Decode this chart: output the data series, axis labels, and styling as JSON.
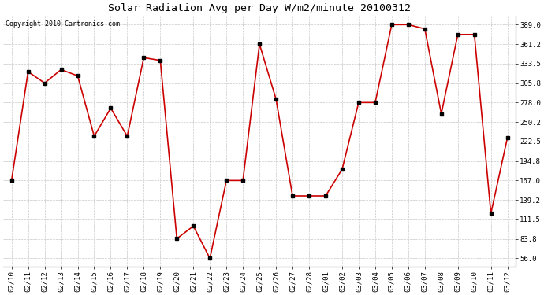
{
  "title": "Solar Radiation Avg per Day W/m2/minute 20100312",
  "copyright": "Copyright 2010 Cartronics.com",
  "line_color": "#cc0000",
  "marker_color": "#000000",
  "bg_color": "#ffffff",
  "grid_color": "#c8c8c8",
  "dates": [
    "02/10",
    "02/11",
    "02/12",
    "02/13",
    "02/14",
    "02/15",
    "02/16",
    "02/17",
    "02/18",
    "02/19",
    "02/20",
    "02/21",
    "02/22",
    "02/23",
    "02/24",
    "02/25",
    "02/26",
    "02/27",
    "02/28",
    "03/01",
    "03/02",
    "03/03",
    "03/04",
    "03/05",
    "03/06",
    "03/07",
    "03/08",
    "03/09",
    "03/10",
    "03/11",
    "03/12"
  ],
  "values": [
    167.0,
    322.0,
    305.8,
    325.0,
    316.0,
    230.0,
    270.0,
    230.0,
    342.0,
    338.0,
    84.0,
    102.0,
    56.0,
    167.0,
    167.0,
    361.2,
    283.0,
    145.0,
    145.0,
    145.0,
    183.0,
    278.0,
    278.0,
    389.0,
    389.0,
    383.0,
    262.0,
    375.0,
    375.0,
    120.0,
    228.0
  ],
  "yticks": [
    56.0,
    83.8,
    111.5,
    139.2,
    167.0,
    194.8,
    222.5,
    250.2,
    278.0,
    305.8,
    333.5,
    361.2,
    389.0
  ],
  "ylim": [
    44.0,
    402.0
  ],
  "title_fontsize": 9.5,
  "copyright_fontsize": 6.0,
  "tick_fontsize": 6.5,
  "figwidth": 6.9,
  "figheight": 3.75,
  "dpi": 100
}
